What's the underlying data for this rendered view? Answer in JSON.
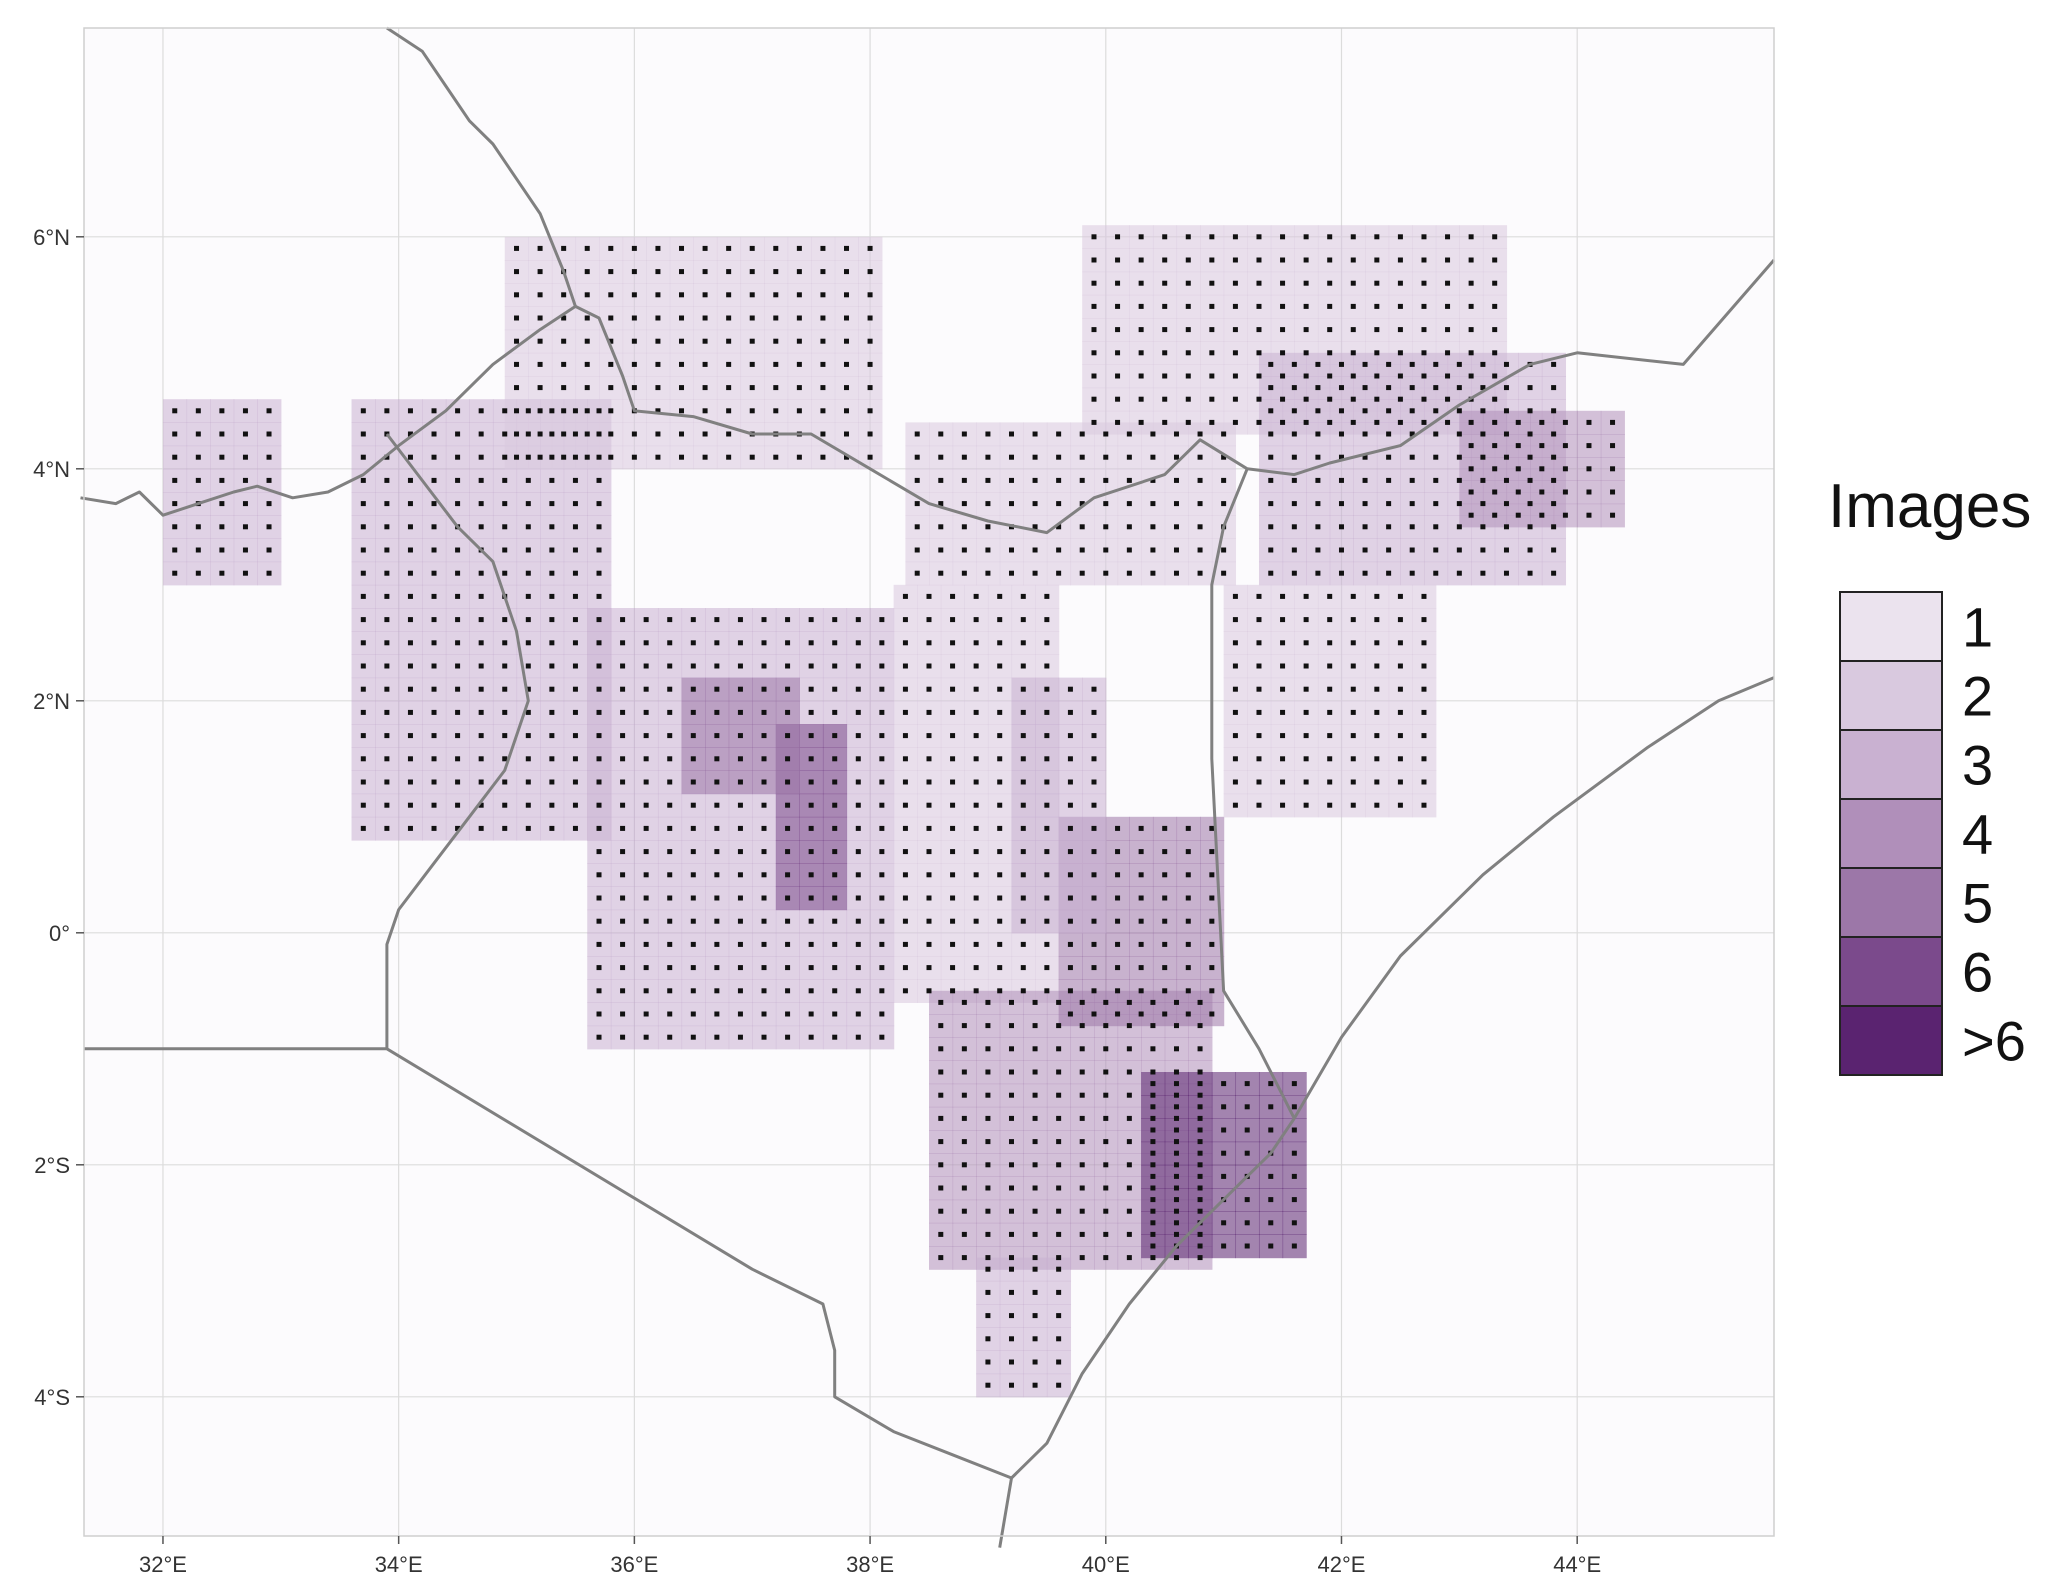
{
  "map": {
    "extent": {
      "lon": [
        31.33,
        45.67
      ],
      "lat": [
        -5.2,
        7.8
      ]
    },
    "x_ticks": [
      {
        "lon": 32,
        "label": "32°E"
      },
      {
        "lon": 34,
        "label": "34°E"
      },
      {
        "lon": 36,
        "label": "36°E"
      },
      {
        "lon": 38,
        "label": "38°E"
      },
      {
        "lon": 40,
        "label": "40°E"
      },
      {
        "lon": 42,
        "label": "42°E"
      },
      {
        "lon": 44,
        "label": "44°E"
      }
    ],
    "y_ticks": [
      {
        "lat": 6,
        "label": "6°N"
      },
      {
        "lat": 4,
        "label": "4°N"
      },
      {
        "lat": 2,
        "label": "2°N"
      },
      {
        "lat": 0,
        "label": "0°"
      },
      {
        "lat": -2,
        "label": "2°S"
      },
      {
        "lat": -4,
        "label": "4°S"
      }
    ],
    "grid": true,
    "colors": {
      "background": "#fcfbfd",
      "grid": "#dcdcdc",
      "border": "#808080",
      "fill": "#5c1a6e",
      "point": "#111111"
    },
    "borders": [
      [
        [
          33.9,
          7.8
        ],
        [
          34.2,
          7.6
        ],
        [
          34.4,
          7.3
        ],
        [
          34.6,
          7.0
        ],
        [
          34.8,
          6.8
        ],
        [
          35.0,
          6.5
        ],
        [
          35.2,
          6.2
        ],
        [
          35.4,
          5.7
        ],
        [
          35.5,
          5.4
        ]
      ],
      [
        [
          31.3,
          3.75
        ],
        [
          31.6,
          3.7
        ],
        [
          31.8,
          3.8
        ],
        [
          32.0,
          3.6
        ],
        [
          32.3,
          3.7
        ],
        [
          32.6,
          3.8
        ],
        [
          32.8,
          3.85
        ],
        [
          33.1,
          3.75
        ],
        [
          33.4,
          3.8
        ],
        [
          33.7,
          3.95
        ],
        [
          34.0,
          4.2
        ],
        [
          34.4,
          4.5
        ],
        [
          34.8,
          4.9
        ],
        [
          35.2,
          5.2
        ],
        [
          35.5,
          5.4
        ]
      ],
      [
        [
          35.5,
          5.4
        ],
        [
          35.7,
          5.3
        ],
        [
          35.9,
          4.8
        ],
        [
          36.0,
          4.5
        ],
        [
          36.5,
          4.45
        ],
        [
          37.0,
          4.3
        ],
        [
          37.5,
          4.3
        ],
        [
          38.0,
          4.0
        ],
        [
          38.5,
          3.7
        ],
        [
          39.0,
          3.55
        ],
        [
          39.5,
          3.45
        ],
        [
          39.9,
          3.75
        ],
        [
          40.5,
          3.95
        ],
        [
          40.8,
          4.25
        ],
        [
          41.2,
          4.0
        ],
        [
          41.6,
          3.95
        ],
        [
          41.9,
          4.05
        ],
        [
          42.5,
          4.2
        ],
        [
          43.0,
          4.55
        ],
        [
          43.6,
          4.9
        ],
        [
          44.0,
          5.0
        ],
        [
          44.9,
          4.9
        ],
        [
          45.67,
          5.8
        ]
      ],
      [
        [
          33.9,
          4.3
        ],
        [
          34.2,
          3.9
        ],
        [
          34.5,
          3.5
        ],
        [
          34.8,
          3.2
        ],
        [
          35.0,
          2.6
        ],
        [
          35.1,
          2.0
        ],
        [
          34.9,
          1.4
        ],
        [
          34.6,
          1.0
        ],
        [
          34.3,
          0.6
        ],
        [
          34.0,
          0.2
        ],
        [
          33.9,
          -0.1
        ],
        [
          33.9,
          -1.0
        ]
      ],
      [
        [
          41.2,
          4.0
        ],
        [
          41.0,
          3.5
        ],
        [
          40.9,
          3.0
        ],
        [
          40.9,
          2.5
        ],
        [
          40.9,
          1.5
        ],
        [
          40.95,
          0.5
        ],
        [
          41.0,
          -0.5
        ],
        [
          41.3,
          -1.0
        ],
        [
          41.6,
          -1.6
        ]
      ],
      [
        [
          31.33,
          -1.0
        ],
        [
          33.9,
          -1.0
        ],
        [
          37.0,
          -2.9
        ],
        [
          37.6,
          -3.2
        ],
        [
          37.7,
          -3.6
        ],
        [
          37.7,
          -4.0
        ],
        [
          38.2,
          -4.3
        ],
        [
          38.7,
          -4.5
        ],
        [
          39.2,
          -4.7
        ]
      ],
      [
        [
          41.6,
          -1.6
        ],
        [
          42.0,
          -0.9
        ],
        [
          42.5,
          -0.2
        ],
        [
          43.2,
          0.5
        ],
        [
          43.8,
          1.0
        ],
        [
          44.6,
          1.6
        ],
        [
          45.2,
          2.0
        ],
        [
          45.67,
          2.2
        ]
      ],
      [
        [
          39.1,
          -5.3
        ],
        [
          39.2,
          -4.7
        ],
        [
          39.5,
          -4.4
        ],
        [
          39.8,
          -3.8
        ],
        [
          40.2,
          -3.2
        ],
        [
          40.6,
          -2.7
        ],
        [
          41.0,
          -2.3
        ],
        [
          41.4,
          -1.9
        ],
        [
          41.6,
          -1.6
        ]
      ]
    ]
  },
  "chart_data": {
    "type": "heatmap",
    "value_name": "Images",
    "x_axis": "longitude",
    "y_axis": "latitude",
    "cell_size_deg": 0.2,
    "levels": [
      "1",
      "2",
      "3",
      "4",
      "5",
      "6",
      ">6"
    ],
    "coverage_regions": [
      {
        "lon": [
          33.6,
          35.8
        ],
        "lat": [
          0.8,
          4.6
        ],
        "level": 3
      },
      {
        "lon": [
          35.6,
          38.1
        ],
        "lat": [
          -1.0,
          2.8
        ],
        "level": 3
      },
      {
        "lon": [
          34.9,
          38.0
        ],
        "lat": [
          4.0,
          6.0
        ],
        "level": 2
      },
      {
        "lon": [
          38.2,
          39.6
        ],
        "lat": [
          -0.6,
          2.9
        ],
        "level": 2
      },
      {
        "lon": [
          38.5,
          40.9
        ],
        "lat": [
          -2.9,
          -0.6
        ],
        "level": 4
      },
      {
        "lon": [
          39.6,
          41.0
        ],
        "lat": [
          -0.8,
          1.0
        ],
        "level": 5
      },
      {
        "lon": [
          38.3,
          41.1
        ],
        "lat": [
          3.0,
          4.3
        ],
        "level": 2
      },
      {
        "lon": [
          39.8,
          43.3
        ],
        "lat": [
          4.3,
          6.0
        ],
        "level": 2
      },
      {
        "lon": [
          41.3,
          43.9
        ],
        "lat": [
          3.0,
          5.0
        ],
        "level": 3
      },
      {
        "lon": [
          41.0,
          42.7
        ],
        "lat": [
          1.0,
          3.0
        ],
        "level": 2
      },
      {
        "lon": [
          32.0,
          33.0
        ],
        "lat": [
          3.0,
          4.5
        ],
        "level": 3
      },
      {
        "lon": [
          37.2,
          37.8
        ],
        "lat": [
          0.2,
          1.8
        ],
        "level": 6
      },
      {
        "lon": [
          36.4,
          37.4
        ],
        "lat": [
          1.2,
          2.2
        ],
        "level": 5
      },
      {
        "lon": [
          40.3,
          41.7
        ],
        "lat": [
          -2.8,
          -1.2
        ],
        "level": 7
      },
      {
        "lon": [
          38.9,
          39.6
        ],
        "lat": [
          -4.0,
          -2.9
        ],
        "level": 3
      },
      {
        "lon": [
          39.2,
          40.0
        ],
        "lat": [
          0.0,
          2.2
        ],
        "level": 3
      },
      {
        "lon": [
          43.0,
          44.4
        ],
        "lat": [
          3.5,
          4.5
        ],
        "level": 4
      }
    ]
  },
  "legend": {
    "title": "Images",
    "items": [
      {
        "label": "1",
        "color": "#ebe3ee"
      },
      {
        "label": "2",
        "color": "#d9c9df"
      },
      {
        "label": "3",
        "color": "#c9b1d1"
      },
      {
        "label": "4",
        "color": "#b08fba"
      },
      {
        "label": "5",
        "color": "#9c77a8"
      },
      {
        "label": "6",
        "color": "#7b4a8c"
      },
      {
        "label": ">6",
        "color": "#5a2370"
      }
    ]
  }
}
